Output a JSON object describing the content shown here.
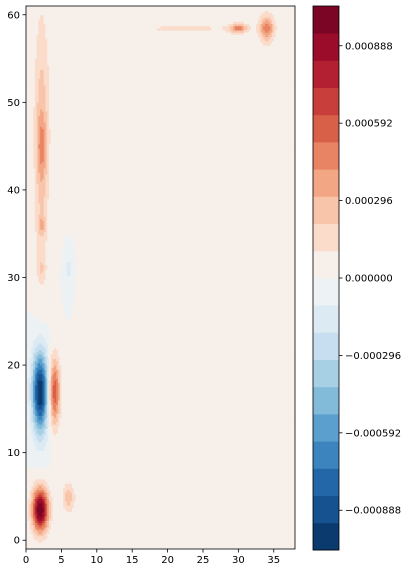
{
  "chart_data": {
    "type": "heatmap",
    "title": "",
    "xlabel": "",
    "ylabel": "",
    "xlim": [
      0,
      38
    ],
    "ylim": [
      -1,
      61
    ],
    "x_ticks": [
      0,
      5,
      10,
      15,
      20,
      25,
      30,
      35
    ],
    "y_ticks": [
      0,
      10,
      20,
      30,
      40,
      50,
      60
    ],
    "colorbar": {
      "vmin": -0.00104,
      "vmax": 0.00104,
      "levels": 21,
      "tick_values": [
        -0.000888,
        -0.000592,
        -0.000296,
        0.0,
        0.000296,
        0.000592,
        0.000888
      ],
      "tick_labels": [
        "−0.000888",
        "−0.000592",
        "−0.000296",
        "0.000000",
        "0.000296",
        "0.000592",
        "0.000888"
      ],
      "colors": [
        "#0b3a6f",
        "#16528f",
        "#2367a8",
        "#3b84bd",
        "#5a9fcd",
        "#82bbda",
        "#a8d0e5",
        "#c6def0",
        "#dceaf4",
        "#edf2f5",
        "#f7efea",
        "#fbdccb",
        "#f8c5ab",
        "#f3a684",
        "#e88463",
        "#d86048",
        "#c73e3a",
        "#b32031",
        "#9a0c2a",
        "#7a0524"
      ]
    },
    "features": [
      {
        "x": 2,
        "y": 17,
        "value": -0.00098
      },
      {
        "x": 2,
        "y": 3.5,
        "value": 0.00098
      },
      {
        "x": 4,
        "y": 17,
        "value": 0.00055
      },
      {
        "x": 2.5,
        "y": 45,
        "value": 0.00035
      },
      {
        "x": 6,
        "y": 5,
        "value": 0.00022
      },
      {
        "x": 30,
        "y": 58.5,
        "value": 0.00045
      },
      {
        "x": 34,
        "y": 58.5,
        "value": 0.0005
      },
      {
        "x": 6,
        "y": 31,
        "value": -0.00012
      }
    ]
  }
}
